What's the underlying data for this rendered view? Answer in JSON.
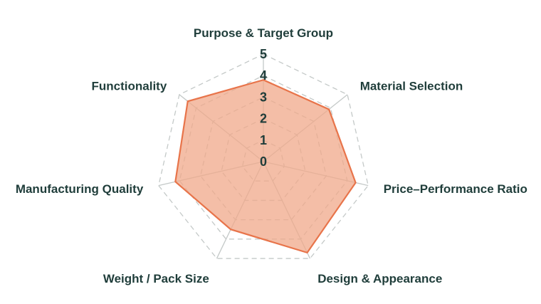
{
  "chart_data": {
    "type": "radar",
    "axes": [
      "Purpose & Target Group",
      "Material Selection",
      "Price–Performance Ratio",
      "Design & Appearance",
      "Weight / Pack Size",
      "Manufacturing Quality",
      "Functionality"
    ],
    "series": [
      {
        "values": [
          3.8,
          3.9,
          4.4,
          4.7,
          3.5,
          4.2,
          4.5
        ]
      }
    ],
    "range": [
      0,
      5
    ],
    "ticks": [
      0,
      1,
      2,
      3,
      4,
      5
    ],
    "grid": true,
    "legend": "none"
  },
  "colors": {
    "series_stroke": "#e8744a",
    "series_fill": "#f0a88a",
    "grid": "#c4c9c8",
    "text": "#1f3d3a"
  }
}
